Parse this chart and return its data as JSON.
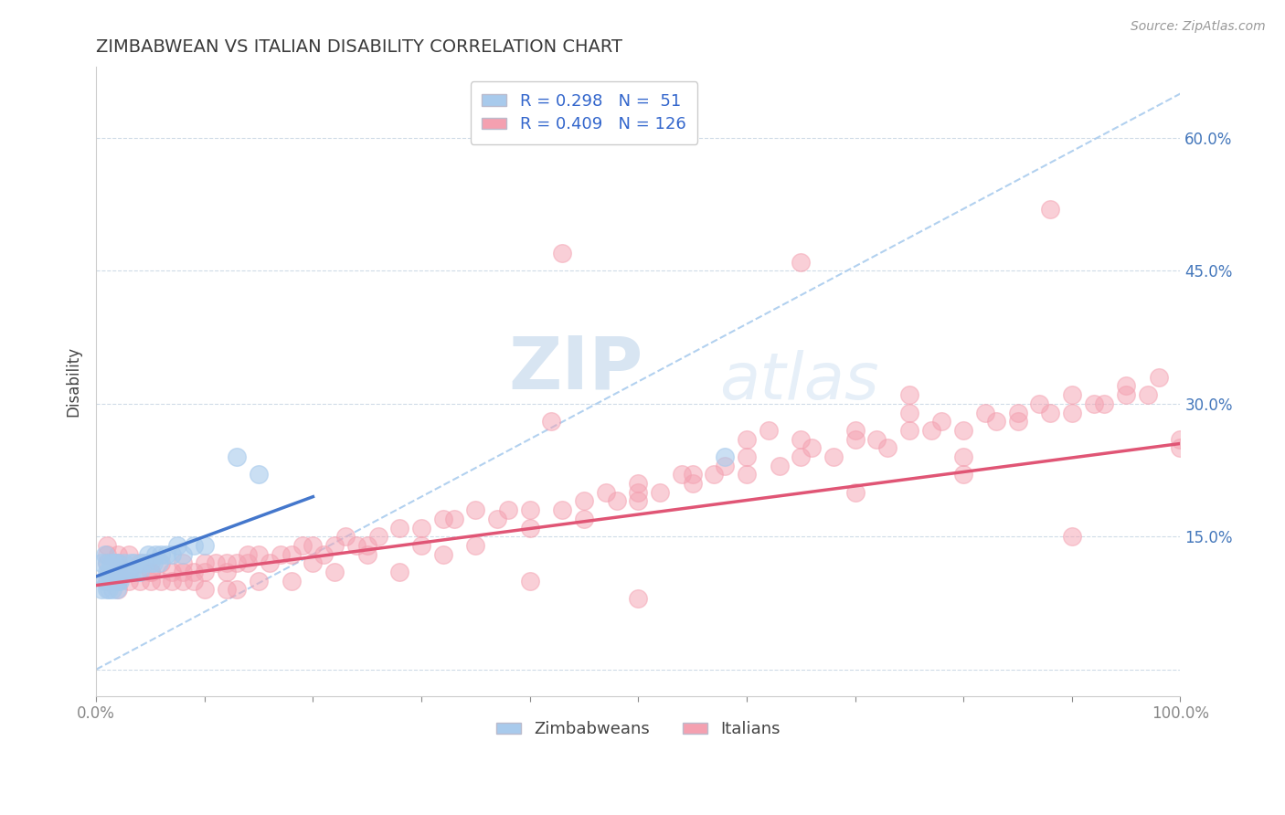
{
  "title": "ZIMBABWEAN VS ITALIAN DISABILITY CORRELATION CHART",
  "source": "Source: ZipAtlas.com",
  "ylabel": "Disability",
  "y_tick_vals": [
    0.0,
    0.15,
    0.3,
    0.45,
    0.6
  ],
  "y_tick_labels": [
    "",
    "15.0%",
    "30.0%",
    "45.0%",
    "60.0%"
  ],
  "xlim": [
    0.0,
    1.0
  ],
  "ylim": [
    -0.03,
    0.68
  ],
  "blue_color": "#A8CAEC",
  "pink_color": "#F4A0B0",
  "blue_line_color": "#4477CC",
  "pink_line_color": "#E05575",
  "diag_color": "#AACCEE",
  "legend_label_blue": "Zimbabweans",
  "legend_label_pink": "Italians",
  "watermark_zip": "ZIP",
  "watermark_atlas": "atlas",
  "title_color": "#3A3A3A",
  "r_blue": 0.298,
  "n_blue": 51,
  "r_pink": 0.409,
  "n_pink": 126,
  "blue_trend_x": [
    0.0,
    0.2
  ],
  "blue_trend_y": [
    0.105,
    0.195
  ],
  "pink_trend_x": [
    0.0,
    1.0
  ],
  "pink_trend_y": [
    0.095,
    0.255
  ],
  "pink_scatter_x": [
    0.01,
    0.01,
    0.01,
    0.01,
    0.02,
    0.02,
    0.02,
    0.02,
    0.02,
    0.03,
    0.03,
    0.03,
    0.04,
    0.04,
    0.05,
    0.05,
    0.06,
    0.06,
    0.07,
    0.07,
    0.08,
    0.08,
    0.09,
    0.09,
    0.1,
    0.1,
    0.11,
    0.12,
    0.12,
    0.13,
    0.14,
    0.14,
    0.15,
    0.16,
    0.17,
    0.18,
    0.19,
    0.2,
    0.21,
    0.22,
    0.23,
    0.24,
    0.25,
    0.26,
    0.28,
    0.3,
    0.32,
    0.33,
    0.35,
    0.37,
    0.38,
    0.4,
    0.42,
    0.43,
    0.45,
    0.47,
    0.48,
    0.5,
    0.52,
    0.54,
    0.55,
    0.57,
    0.58,
    0.6,
    0.62,
    0.63,
    0.65,
    0.66,
    0.68,
    0.7,
    0.72,
    0.73,
    0.75,
    0.77,
    0.78,
    0.8,
    0.82,
    0.83,
    0.85,
    0.87,
    0.88,
    0.9,
    0.92,
    0.93,
    0.95,
    0.97,
    0.98,
    1.0,
    0.43,
    0.5,
    0.65,
    0.88,
    0.75,
    0.13,
    0.2,
    0.3,
    0.4,
    0.5,
    0.6,
    0.7,
    0.8,
    0.9,
    0.05,
    0.08,
    0.1,
    0.12,
    0.15,
    0.18,
    0.22,
    0.25,
    0.28,
    0.32,
    0.35,
    0.4,
    0.45,
    0.5,
    0.55,
    0.6,
    0.65,
    0.7,
    0.75,
    0.8,
    0.85,
    0.9,
    0.95,
    1.0
  ],
  "pink_scatter_y": [
    0.1,
    0.12,
    0.14,
    0.13,
    0.11,
    0.12,
    0.1,
    0.13,
    0.09,
    0.1,
    0.11,
    0.13,
    0.1,
    0.12,
    0.1,
    0.11,
    0.1,
    0.12,
    0.11,
    0.1,
    0.11,
    0.12,
    0.11,
    0.1,
    0.11,
    0.12,
    0.12,
    0.11,
    0.12,
    0.12,
    0.12,
    0.13,
    0.13,
    0.12,
    0.13,
    0.13,
    0.14,
    0.14,
    0.13,
    0.14,
    0.15,
    0.14,
    0.14,
    0.15,
    0.16,
    0.16,
    0.17,
    0.17,
    0.18,
    0.17,
    0.18,
    0.18,
    0.28,
    0.18,
    0.19,
    0.2,
    0.19,
    0.2,
    0.2,
    0.22,
    0.21,
    0.22,
    0.23,
    0.22,
    0.27,
    0.23,
    0.24,
    0.25,
    0.24,
    0.26,
    0.26,
    0.25,
    0.27,
    0.27,
    0.28,
    0.27,
    0.29,
    0.28,
    0.29,
    0.3,
    0.29,
    0.31,
    0.3,
    0.3,
    0.32,
    0.31,
    0.33,
    0.25,
    0.47,
    0.08,
    0.46,
    0.52,
    0.31,
    0.09,
    0.12,
    0.14,
    0.1,
    0.21,
    0.26,
    0.2,
    0.24,
    0.15,
    0.11,
    0.1,
    0.09,
    0.09,
    0.1,
    0.1,
    0.11,
    0.13,
    0.11,
    0.13,
    0.14,
    0.16,
    0.17,
    0.19,
    0.22,
    0.24,
    0.26,
    0.27,
    0.29,
    0.22,
    0.28,
    0.29,
    0.31,
    0.26
  ],
  "blue_scatter_x": [
    0.005,
    0.005,
    0.008,
    0.008,
    0.01,
    0.01,
    0.01,
    0.01,
    0.012,
    0.012,
    0.013,
    0.013,
    0.015,
    0.015,
    0.016,
    0.016,
    0.017,
    0.018,
    0.018,
    0.019,
    0.02,
    0.02,
    0.021,
    0.022,
    0.023,
    0.025,
    0.026,
    0.028,
    0.03,
    0.032,
    0.033,
    0.035,
    0.038,
    0.04,
    0.042,
    0.045,
    0.048,
    0.05,
    0.053,
    0.055,
    0.058,
    0.06,
    0.065,
    0.07,
    0.075,
    0.08,
    0.09,
    0.1,
    0.13,
    0.15,
    0.58
  ],
  "blue_scatter_y": [
    0.09,
    0.12,
    0.1,
    0.13,
    0.09,
    0.1,
    0.11,
    0.12,
    0.09,
    0.11,
    0.1,
    0.12,
    0.09,
    0.11,
    0.1,
    0.12,
    0.11,
    0.1,
    0.12,
    0.09,
    0.1,
    0.12,
    0.11,
    0.1,
    0.11,
    0.11,
    0.12,
    0.11,
    0.11,
    0.12,
    0.11,
    0.12,
    0.11,
    0.11,
    0.12,
    0.12,
    0.13,
    0.12,
    0.12,
    0.13,
    0.12,
    0.13,
    0.13,
    0.13,
    0.14,
    0.13,
    0.14,
    0.14,
    0.24,
    0.22,
    0.24
  ]
}
